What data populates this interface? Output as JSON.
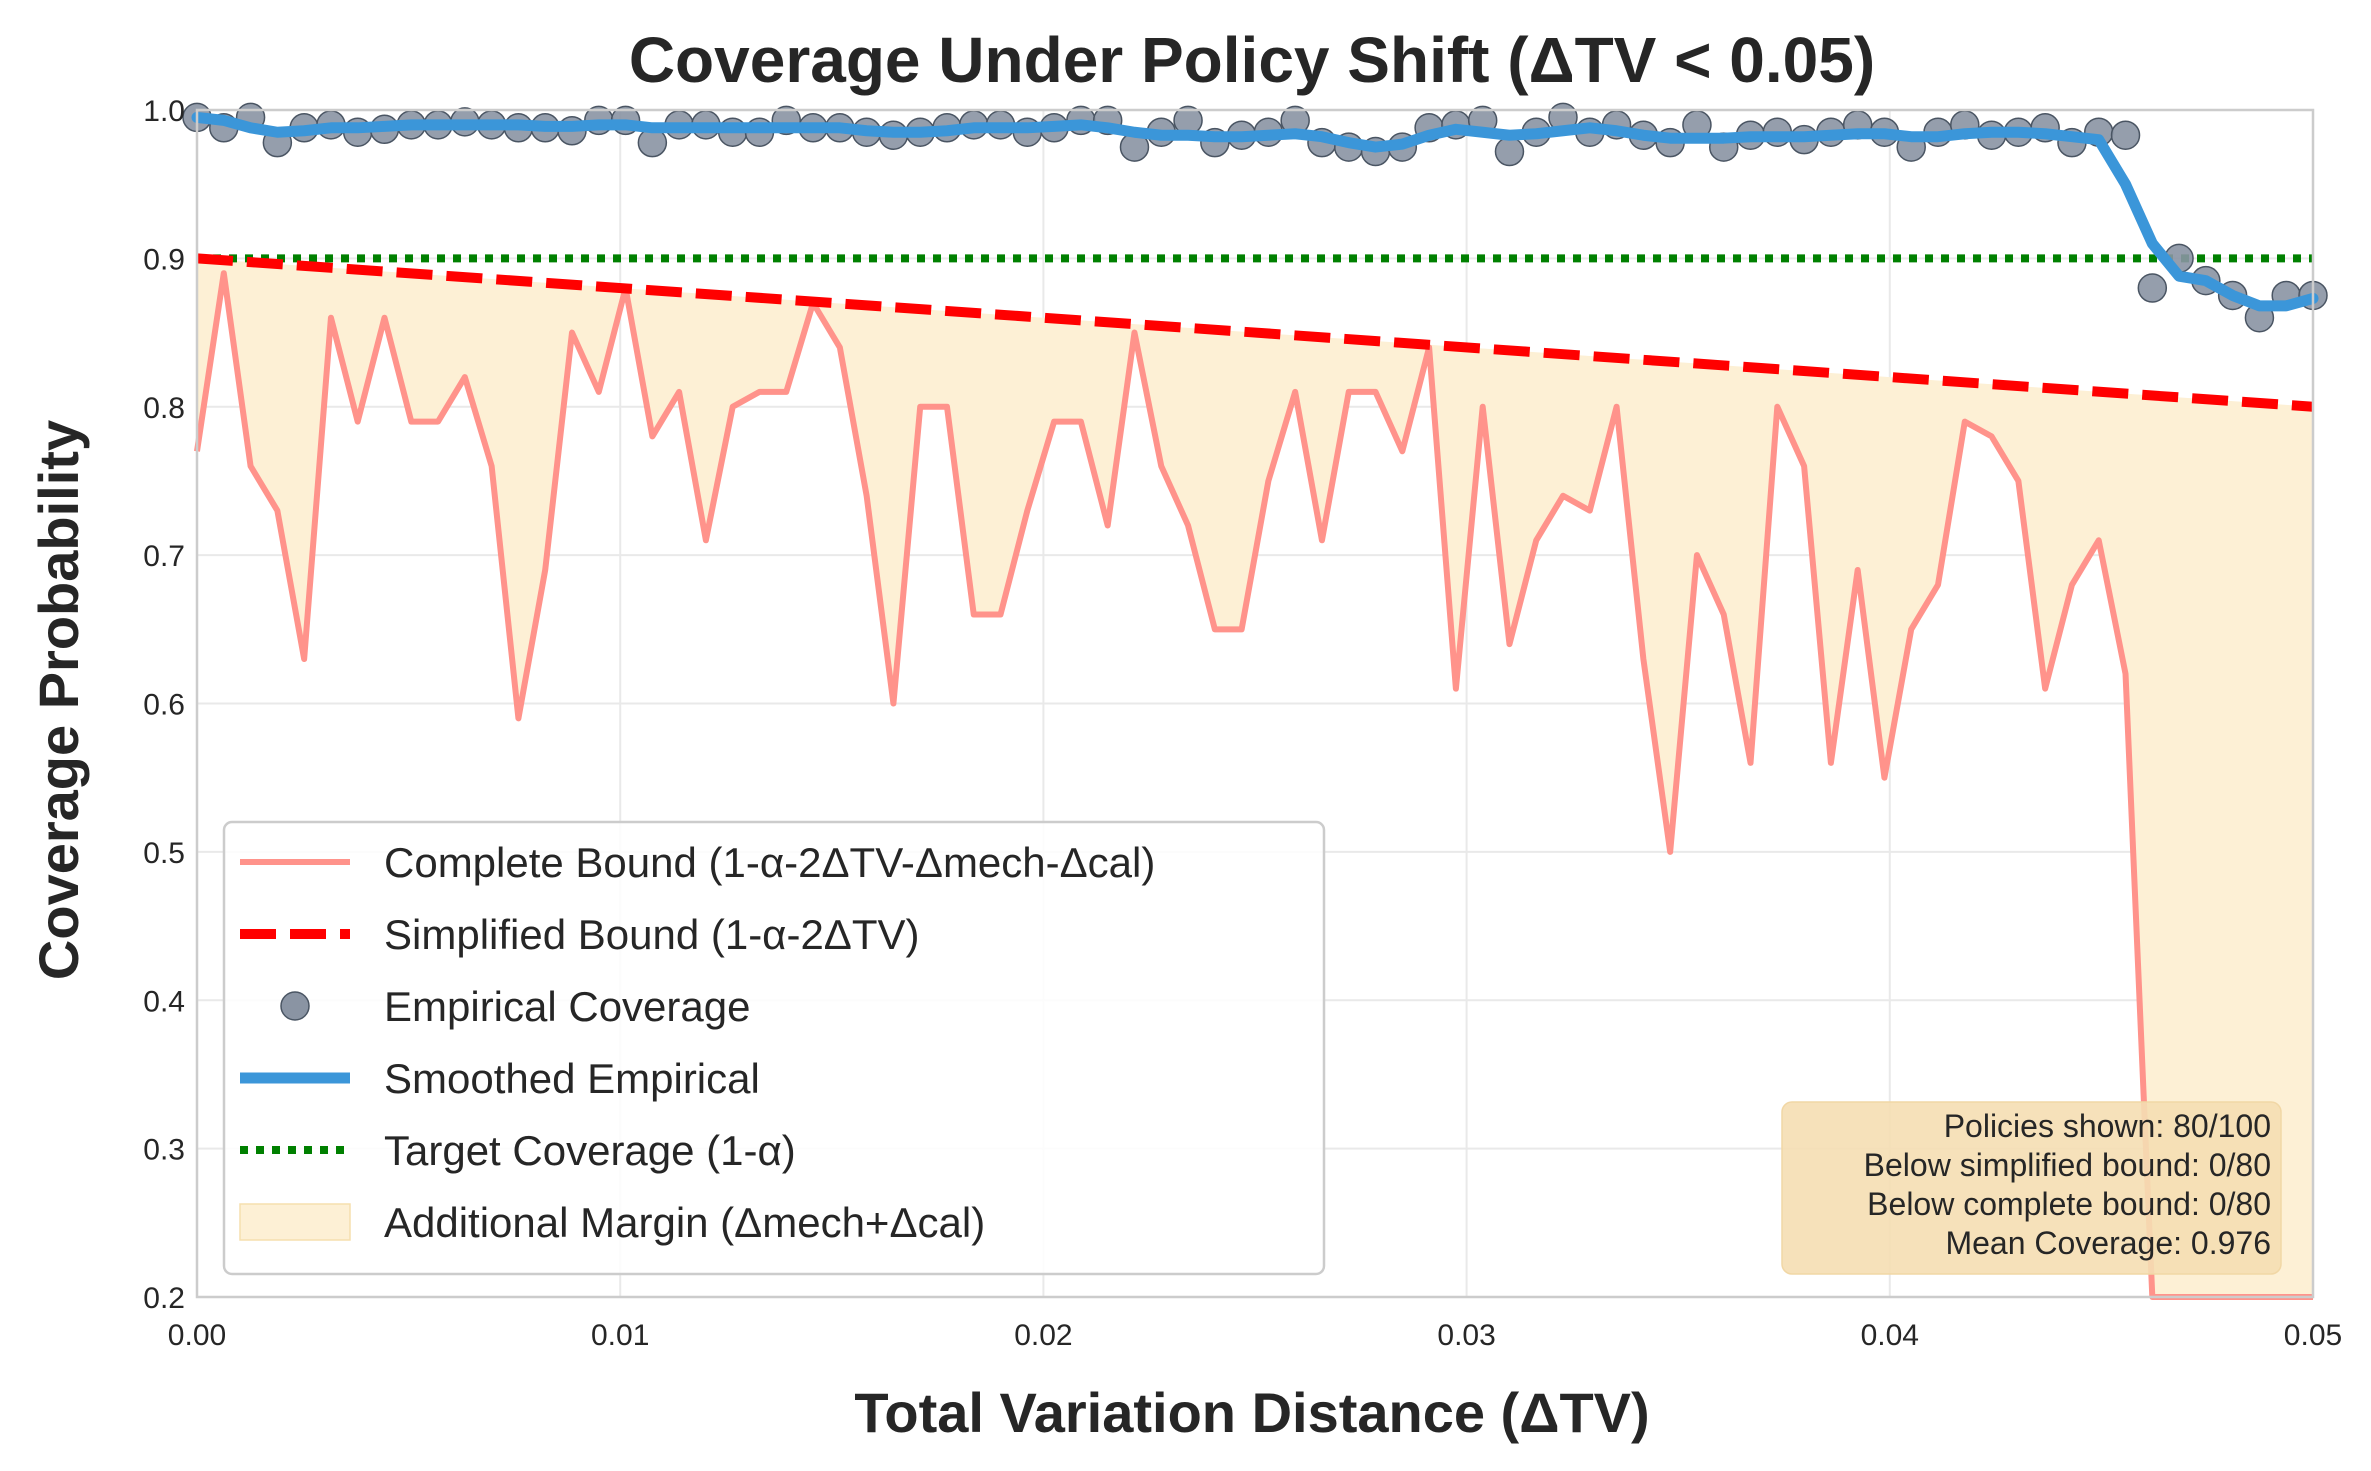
{
  "chart_data": {
    "type": "line",
    "title": "Coverage Under Policy Shift (ΔTV < 0.05)",
    "xlabel": "Total Variation Distance (ΔTV)",
    "ylabel": "Coverage Probability",
    "xlim": [
      0,
      0.05
    ],
    "ylim": [
      0.2,
      1.0
    ],
    "grid": true,
    "legend_position": "lower-left",
    "x_ticks": [
      "0.00",
      "0.01",
      "0.02",
      "0.03",
      "0.04",
      "0.05"
    ],
    "y_ticks": [
      "0.2",
      "0.3",
      "0.4",
      "0.5",
      "0.6",
      "0.7",
      "0.8",
      "0.9",
      "1.0"
    ],
    "x": [
      0.0,
      0.000633,
      0.001266,
      0.001899,
      0.002532,
      0.003165,
      0.003797,
      0.00443,
      0.005063,
      0.005696,
      0.006329,
      0.006962,
      0.007595,
      0.008228,
      0.008861,
      0.009494,
      0.010127,
      0.01076,
      0.011392,
      0.012025,
      0.012658,
      0.013291,
      0.013924,
      0.014557,
      0.01519,
      0.015823,
      0.016456,
      0.017089,
      0.017722,
      0.018354,
      0.018987,
      0.01962,
      0.020253,
      0.020886,
      0.021519,
      0.022152,
      0.022785,
      0.023418,
      0.024051,
      0.024684,
      0.025316,
      0.025949,
      0.026582,
      0.027215,
      0.027848,
      0.028481,
      0.029114,
      0.029747,
      0.03038,
      0.031013,
      0.031646,
      0.032278,
      0.032911,
      0.033544,
      0.034177,
      0.03481,
      0.035443,
      0.036076,
      0.036709,
      0.037342,
      0.037975,
      0.038608,
      0.039241,
      0.039873,
      0.040506,
      0.041139,
      0.041772,
      0.042405,
      0.043038,
      0.043671,
      0.044304,
      0.044937,
      0.04557,
      0.046203,
      0.046835,
      0.047468,
      0.048101,
      0.048734,
      0.049367,
      0.05
    ],
    "series": [
      {
        "name": "Complete Bound (1-α-2ΔTV-Δmech-Δcal)",
        "style": "line",
        "color": "#ff938b",
        "values": [
          0.77,
          0.89,
          0.76,
          0.73,
          0.63,
          0.86,
          0.79,
          0.86,
          0.79,
          0.79,
          0.82,
          0.76,
          0.59,
          0.69,
          0.85,
          0.81,
          0.88,
          0.78,
          0.81,
          0.71,
          0.8,
          0.81,
          0.81,
          0.87,
          0.84,
          0.74,
          0.6,
          0.8,
          0.8,
          0.66,
          0.66,
          0.73,
          0.79,
          0.79,
          0.72,
          0.85,
          0.76,
          0.72,
          0.65,
          0.65,
          0.75,
          0.81,
          0.71,
          0.81,
          0.81,
          0.77,
          0.84,
          0.61,
          0.8,
          0.64,
          0.71,
          0.74,
          0.73,
          0.8,
          0.63,
          0.5,
          0.7,
          0.66,
          0.56,
          0.8,
          0.76,
          0.56,
          0.69,
          0.55,
          0.65,
          0.68,
          0.79,
          0.78,
          0.75,
          0.61,
          0.68,
          0.71,
          0.62,
          0.2,
          0.2,
          0.2,
          0.2,
          0.2,
          0.2,
          0.2
        ]
      },
      {
        "name": "Simplified Bound (1-α-2ΔTV)",
        "style": "dashed",
        "color": "#ff0000",
        "values": "1 - 0.1 - 2*x (0.9 → 0.8)"
      },
      {
        "name": "Empirical Coverage",
        "style": "scatter",
        "color": "#8a94a3",
        "values": [
          0.995,
          0.988,
          0.995,
          0.978,
          0.988,
          0.99,
          0.985,
          0.987,
          0.99,
          0.99,
          0.992,
          0.99,
          0.988,
          0.988,
          0.986,
          0.993,
          0.993,
          0.978,
          0.99,
          0.99,
          0.985,
          0.985,
          0.993,
          0.988,
          0.988,
          0.985,
          0.983,
          0.985,
          0.988,
          0.99,
          0.99,
          0.985,
          0.988,
          0.993,
          0.993,
          0.975,
          0.985,
          0.993,
          0.978,
          0.983,
          0.985,
          0.993,
          0.978,
          0.975,
          0.972,
          0.975,
          0.988,
          0.99,
          0.993,
          0.972,
          0.985,
          0.995,
          0.985,
          0.99,
          0.983,
          0.978,
          0.99,
          0.975,
          0.983,
          0.985,
          0.98,
          0.985,
          0.99,
          0.985,
          0.975,
          0.985,
          0.99,
          0.983,
          0.985,
          0.988,
          0.978,
          0.985,
          0.983,
          0.88,
          0.9,
          0.885,
          0.875,
          0.86,
          0.875,
          0.875
        ]
      },
      {
        "name": "Smoothed Empirical",
        "style": "line",
        "color": "#3b96d9",
        "values": [
          0.995,
          0.993,
          0.988,
          0.985,
          0.986,
          0.988,
          0.988,
          0.989,
          0.99,
          0.99,
          0.99,
          0.99,
          0.99,
          0.989,
          0.989,
          0.99,
          0.99,
          0.988,
          0.988,
          0.988,
          0.988,
          0.988,
          0.988,
          0.988,
          0.988,
          0.986,
          0.985,
          0.985,
          0.986,
          0.988,
          0.988,
          0.988,
          0.989,
          0.99,
          0.988,
          0.985,
          0.983,
          0.983,
          0.982,
          0.982,
          0.983,
          0.984,
          0.982,
          0.978,
          0.975,
          0.977,
          0.983,
          0.987,
          0.985,
          0.983,
          0.984,
          0.986,
          0.988,
          0.986,
          0.983,
          0.981,
          0.981,
          0.981,
          0.982,
          0.982,
          0.982,
          0.983,
          0.984,
          0.984,
          0.982,
          0.982,
          0.984,
          0.985,
          0.985,
          0.984,
          0.982,
          0.98,
          0.95,
          0.91,
          0.888,
          0.885,
          0.875,
          0.868,
          0.868,
          0.873
        ]
      },
      {
        "name": "Target Coverage (1-α)",
        "style": "dotted",
        "color": "#008000",
        "values": "constant 0.9"
      },
      {
        "name": "Additional Margin (Δmech+Δcal)",
        "style": "fill",
        "color": "#fdf0d5",
        "values": "region between Complete Bound and Simplified Bound"
      }
    ],
    "annotation": {
      "position": "bottom-right",
      "lines": [
        "Policies shown: 80/100",
        "Below simplified bound: 0/80",
        "Below complete bound: 0/80",
        "Mean Coverage: 0.976"
      ]
    }
  }
}
